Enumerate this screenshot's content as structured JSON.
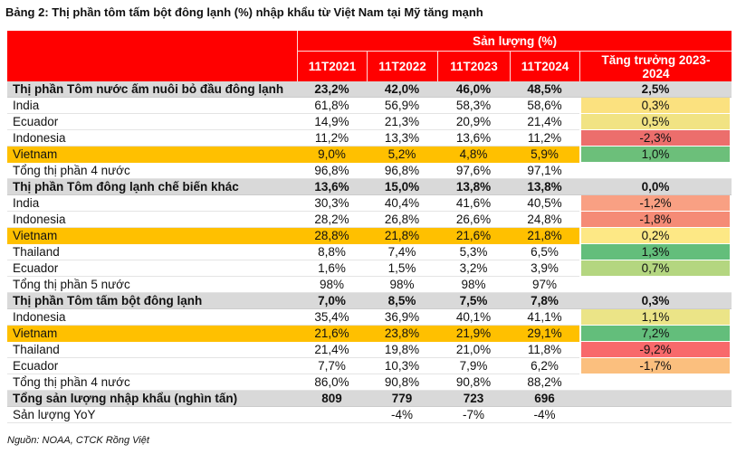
{
  "colors": {
    "header_bg": "#ff0000",
    "header_text": "#ffffff",
    "section_bg": "#d9d9d9",
    "highlight_bg": "#ffc000"
  },
  "chart_data": {
    "type": "table",
    "title": "Bảng 2: Thị phần tôm tấm bột đông lạnh (%) nhập khẩu từ Việt Nam tại Mỹ tăng mạnh",
    "header": {
      "group_label": "Sản lượng (%)",
      "columns": [
        "11T2021",
        "11T2022",
        "11T2023",
        "11T2024"
      ],
      "growth_label_lines": [
        "Tăng trưởng 2023-",
        "2024"
      ]
    },
    "rows": [
      {
        "label": "Thị phần Tôm nước ấm nuôi bỏ đầu đông lạnh",
        "section": true,
        "values": [
          "23,2%",
          "42,0%",
          "46,0%",
          "48,5%"
        ],
        "growth": "2,5%"
      },
      {
        "label": "India",
        "values": [
          "61,8%",
          "56,9%",
          "58,3%",
          "58,6%"
        ],
        "growth": "0,3%",
        "growth_color": "#fbe17f"
      },
      {
        "label": "Ecuador",
        "values": [
          "14,9%",
          "21,3%",
          "20,9%",
          "21,4%"
        ],
        "growth": "0,5%",
        "growth_color": "#f1e383"
      },
      {
        "label": "Indonesia",
        "values": [
          "11,2%",
          "13,3%",
          "13,6%",
          "11,2%"
        ],
        "growth": "-2,3%",
        "growth_color": "#ec6e6c"
      },
      {
        "label": "Vietnam",
        "highlight": true,
        "values": [
          "9,0%",
          "5,2%",
          "4,8%",
          "5,9%"
        ],
        "growth": "1,0%",
        "growth_color": "#6cbf7a"
      },
      {
        "label": "Tổng thị phần 4 nước",
        "values": [
          "96,8%",
          "96,8%",
          "97,6%",
          "97,1%"
        ],
        "growth": null
      },
      {
        "label": "Thị phần Tôm đông lạnh chế biến khác",
        "section": true,
        "values": [
          "13,6%",
          "15,0%",
          "13,8%",
          "13,8%"
        ],
        "growth": "0,0%"
      },
      {
        "label": "India",
        "values": [
          "30,3%",
          "40,4%",
          "41,6%",
          "40,5%"
        ],
        "growth": "-1,2%",
        "growth_color": "#f9a083"
      },
      {
        "label": "Indonesia",
        "values": [
          "28,2%",
          "26,8%",
          "26,6%",
          "24,8%"
        ],
        "growth": "-1,8%",
        "growth_color": "#f58b76"
      },
      {
        "label": "Vietnam",
        "highlight": true,
        "values": [
          "28,8%",
          "21,8%",
          "21,6%",
          "21,8%"
        ],
        "growth": "0,2%",
        "growth_color": "#fde885"
      },
      {
        "label": "Thailand",
        "values": [
          "8,8%",
          "7,4%",
          "5,3%",
          "6,5%"
        ],
        "growth": "1,3%",
        "growth_color": "#63be7b"
      },
      {
        "label": "Ecuador",
        "values": [
          "1,6%",
          "1,5%",
          "3,2%",
          "3,9%"
        ],
        "growth": "0,7%",
        "growth_color": "#b4d680"
      },
      {
        "label": "Tổng thị phần 5 nước",
        "values": [
          "98%",
          "98%",
          "98%",
          "97%"
        ],
        "growth": null
      },
      {
        "label": "Thị phần Tôm tấm bột đông lạnh",
        "section": true,
        "values": [
          "7,0%",
          "8,5%",
          "7,5%",
          "7,8%"
        ],
        "growth": "0,3%"
      },
      {
        "label": "Indonesia",
        "values": [
          "35,4%",
          "36,9%",
          "40,1%",
          "41,1%"
        ],
        "growth": "1,1%",
        "growth_color": "#ebe487"
      },
      {
        "label": "Vietnam",
        "highlight": true,
        "values": [
          "21,6%",
          "23,8%",
          "21,9%",
          "29,1%"
        ],
        "growth": "7,2%",
        "growth_color": "#63be7b"
      },
      {
        "label": "Thailand",
        "values": [
          "21,4%",
          "19,8%",
          "21,0%",
          "11,8%"
        ],
        "growth": "-9,2%",
        "growth_color": "#f8696b"
      },
      {
        "label": "Ecuador",
        "values": [
          "7,7%",
          "10,3%",
          "7,9%",
          "6,2%"
        ],
        "growth": "-1,7%",
        "growth_color": "#fbbf7e"
      },
      {
        "label": "Tổng thị phần 4 nước",
        "values": [
          "86,0%",
          "90,8%",
          "90,8%",
          "88,2%"
        ],
        "growth": null
      },
      {
        "label": "Tổng sản lượng nhập khẩu (nghìn tấn)",
        "section": true,
        "values": [
          "809",
          "779",
          "723",
          "696"
        ],
        "growth": null
      },
      {
        "label": "Sản lượng YoY",
        "values": [
          null,
          "-4%",
          "-7%",
          "-4%"
        ],
        "growth": null
      }
    ]
  },
  "source": "Nguồn: NOAA, CTCK Rồng Việt"
}
